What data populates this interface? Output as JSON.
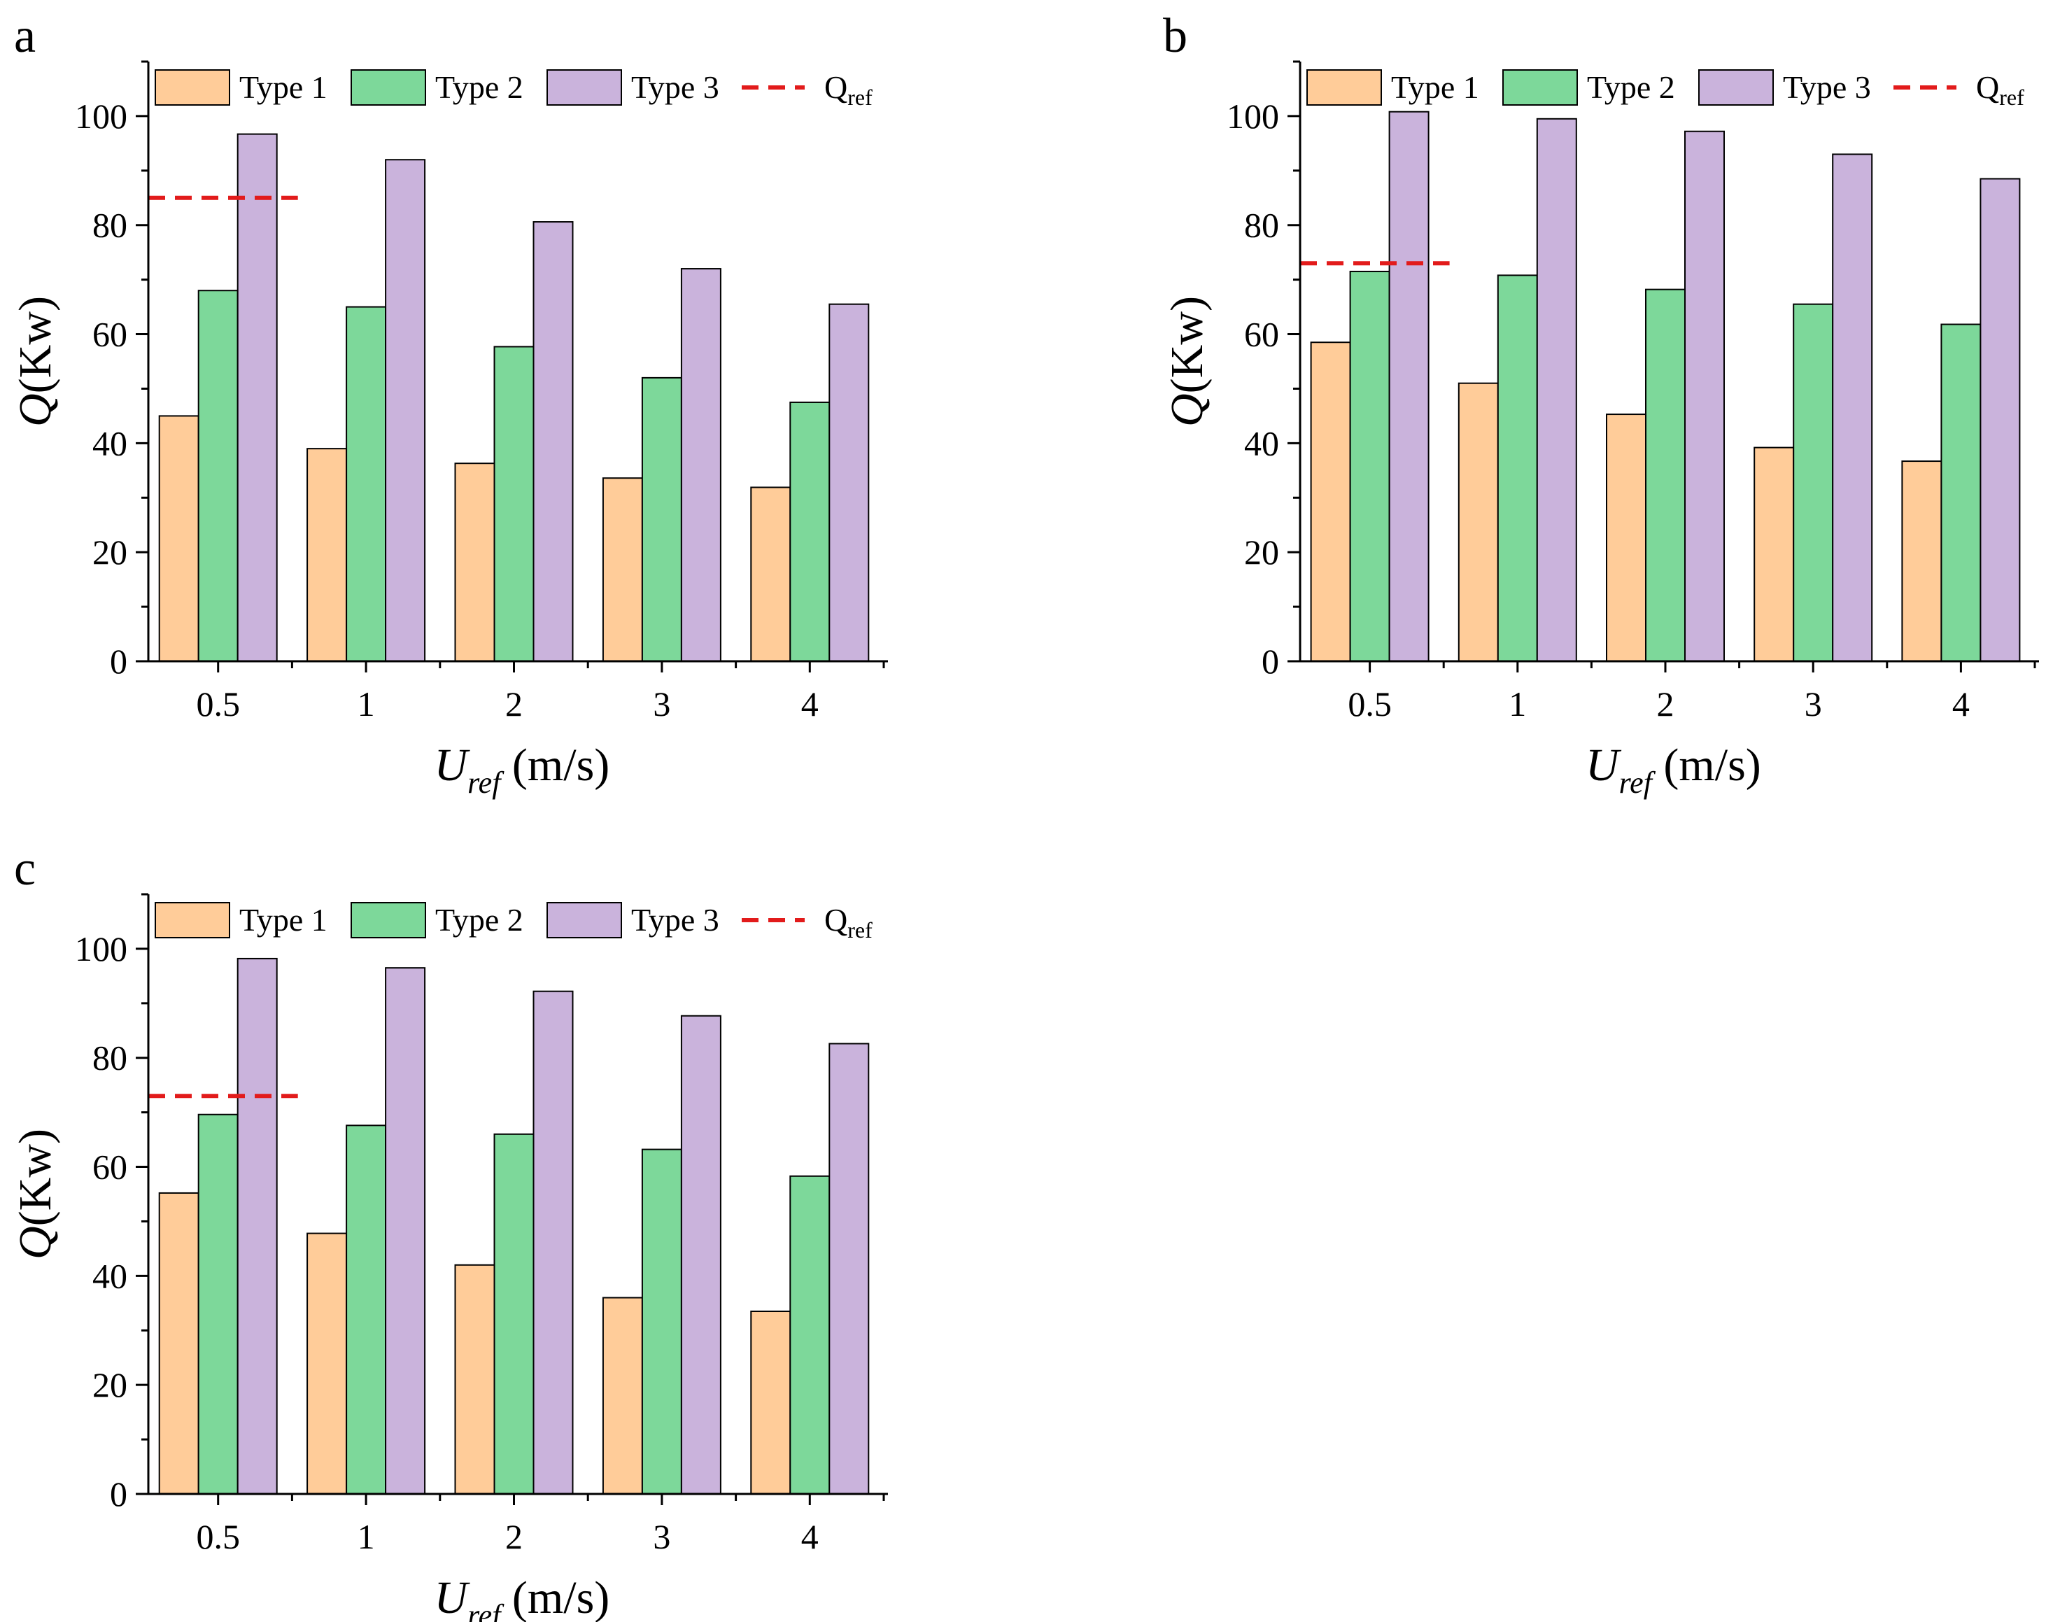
{
  "colors": {
    "type1": "#ffcc99",
    "type2": "#7dd89a",
    "type3": "#cab3dc",
    "qref": "#e21b1b",
    "axis": "#000000"
  },
  "chart_data": [
    {
      "panel": "a",
      "type": "bar",
      "categories": [
        "0.5",
        "1",
        "2",
        "3",
        "4"
      ],
      "series": [
        {
          "name": "Type 1",
          "values": [
            45,
            39,
            36.3,
            33.6,
            31.9
          ]
        },
        {
          "name": "Type 2",
          "values": [
            68,
            65,
            57.7,
            52,
            47.5
          ]
        },
        {
          "name": "Type 3",
          "values": [
            96.7,
            92,
            80.6,
            72,
            65.5
          ]
        }
      ],
      "reference": {
        "name": "Q",
        "subscript": "ref",
        "value": 85,
        "x_range": [
          "left-edge",
          "0.5"
        ]
      },
      "xlabel": {
        "main": "U",
        "sub": "ref",
        "unit": "(m/s)"
      },
      "ylabel": {
        "main": "Q",
        "unit": "(Kw)"
      },
      "ylim": [
        0,
        110
      ],
      "yticks": [
        "0",
        "20",
        "40",
        "60",
        "80",
        "100"
      ],
      "legend": {
        "placement": "top",
        "labels": [
          "Type 1",
          "Type 2",
          "Type 3"
        ]
      }
    },
    {
      "panel": "b",
      "type": "bar",
      "categories": [
        "0.5",
        "1",
        "2",
        "3",
        "4"
      ],
      "series": [
        {
          "name": "Type 1",
          "values": [
            58.5,
            51,
            45.3,
            39.2,
            36.7
          ]
        },
        {
          "name": "Type 2",
          "values": [
            71.5,
            70.8,
            68.2,
            65.5,
            61.8
          ]
        },
        {
          "name": "Type 3",
          "values": [
            100.8,
            99.5,
            97.2,
            93,
            88.5
          ]
        }
      ],
      "reference": {
        "name": "Q",
        "subscript": "ref",
        "value": 73,
        "x_range": [
          "left-edge",
          "0.5"
        ]
      },
      "xlabel": {
        "main": "U",
        "sub": "ref",
        "unit": "(m/s)"
      },
      "ylabel": {
        "main": "Q",
        "unit": "(Kw)"
      },
      "ylim": [
        0,
        110
      ],
      "yticks": [
        "0",
        "20",
        "40",
        "60",
        "80",
        "100"
      ],
      "legend": {
        "placement": "top",
        "labels": [
          "Type 1",
          "Type 2",
          "Type 3"
        ]
      }
    },
    {
      "panel": "c",
      "type": "bar",
      "categories": [
        "0.5",
        "1",
        "2",
        "3",
        "4"
      ],
      "series": [
        {
          "name": "Type 1",
          "values": [
            55.2,
            47.8,
            42,
            36,
            33.5
          ]
        },
        {
          "name": "Type 2",
          "values": [
            69.6,
            67.6,
            66,
            63.2,
            58.3
          ]
        },
        {
          "name": "Type 3",
          "values": [
            98.2,
            96.5,
            92.2,
            87.7,
            82.6
          ]
        }
      ],
      "reference": {
        "name": "Q",
        "subscript": "ref",
        "value": 73,
        "x_range": [
          "left-edge",
          "0.5"
        ]
      },
      "xlabel": {
        "main": "U",
        "sub": "ref",
        "unit": "(m/s)"
      },
      "ylabel": {
        "main": "Q",
        "unit": "(Kw)"
      },
      "ylim": [
        0,
        110
      ],
      "yticks": [
        "0",
        "20",
        "40",
        "60",
        "80",
        "100"
      ],
      "legend": {
        "placement": "top",
        "labels": [
          "Type 1",
          "Type 2",
          "Type 3"
        ]
      }
    }
  ]
}
